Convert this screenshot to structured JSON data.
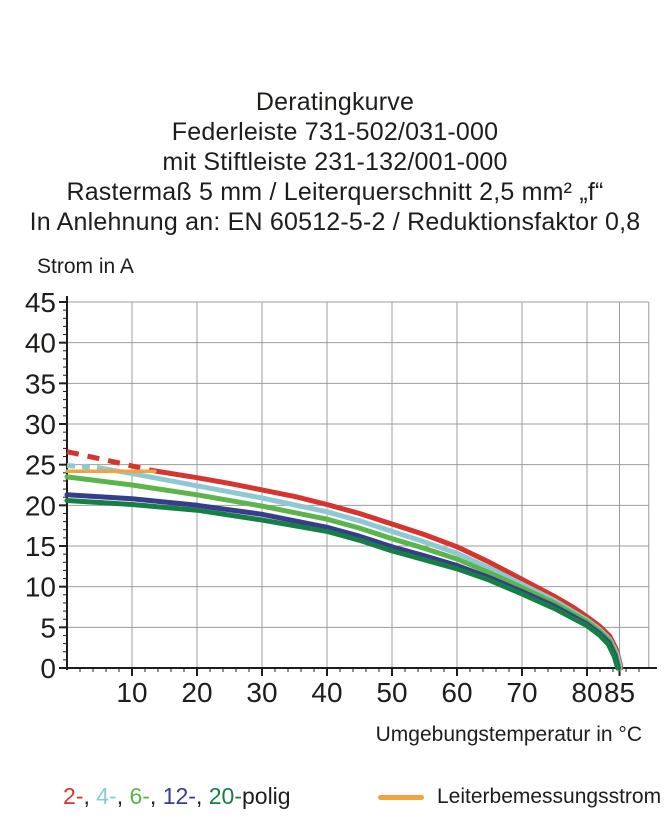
{
  "title_block": {
    "lines": [
      "Deratingkurve",
      "Federleiste 731-502/031-000",
      "mit Stiftleiste 231-132/001-000",
      "Rastermaß 5 mm / Leiterquerschnitt 2,5 mm² „f“",
      "In Anlehnung an: EN 60512-5-2 / Reduktionsfaktor 0,8"
    ]
  },
  "chart_data": {
    "type": "line",
    "title": "Deratingkurve",
    "ylabel": "Strom in A",
    "xlabel": "Umgebungstemperatur in °C",
    "xlim": [
      0,
      89.5
    ],
    "ylim": [
      0,
      45
    ],
    "x_ticks": [
      10,
      20,
      30,
      40,
      50,
      60,
      70,
      80,
      85
    ],
    "x_minor_step": 2,
    "x_minor_max": 88,
    "y_ticks": [
      0,
      5,
      10,
      15,
      20,
      25,
      30,
      35,
      40,
      45
    ],
    "y_minor_step": 1,
    "grid": true,
    "grid_color": "#9c9c9c",
    "axis_color": "#1d1d1b",
    "series": [
      {
        "name": "2-polig",
        "color": "#d6342c",
        "width": 5,
        "dash_pattern": "12 9",
        "dashed_points": [
          [
            0,
            26.6
          ],
          [
            4,
            25.9
          ],
          [
            8,
            25.2
          ],
          [
            13,
            24.3
          ]
        ],
        "points": [
          [
            13,
            24.3
          ],
          [
            20,
            23.4
          ],
          [
            25,
            22.7
          ],
          [
            30,
            21.9
          ],
          [
            35,
            21.1
          ],
          [
            40,
            20.1
          ],
          [
            45,
            19.0
          ],
          [
            50,
            17.7
          ],
          [
            55,
            16.4
          ],
          [
            60,
            14.9
          ],
          [
            65,
            13.0
          ],
          [
            70,
            10.9
          ],
          [
            75,
            8.8
          ],
          [
            78,
            7.4
          ],
          [
            80,
            6.3
          ],
          [
            82,
            5.1
          ],
          [
            83.5,
            3.9
          ],
          [
            84.5,
            2.3
          ],
          [
            85.1,
            0.5
          ],
          [
            85.2,
            0
          ]
        ]
      },
      {
        "name": "4-polig",
        "color": "#8ec9d3",
        "width": 5,
        "dash_pattern": "8 7",
        "dashed_points": [
          [
            0,
            24.9
          ],
          [
            5,
            24.6
          ]
        ],
        "points": [
          [
            5,
            24.6
          ],
          [
            10,
            23.9
          ],
          [
            20,
            22.4
          ],
          [
            30,
            20.9
          ],
          [
            40,
            19.2
          ],
          [
            45,
            18.1
          ],
          [
            50,
            16.8
          ],
          [
            55,
            15.5
          ],
          [
            60,
            14.1
          ],
          [
            65,
            12.3
          ],
          [
            70,
            10.3
          ],
          [
            75,
            8.3
          ],
          [
            80,
            5.9
          ],
          [
            82,
            4.7
          ],
          [
            83.5,
            3.5
          ],
          [
            84.5,
            1.9
          ],
          [
            85,
            0.4
          ],
          [
            85.05,
            0
          ]
        ]
      },
      {
        "name": "6-polig",
        "color": "#5cb54b",
        "width": 5,
        "points": [
          [
            0,
            23.5
          ],
          [
            10,
            22.5
          ],
          [
            20,
            21.3
          ],
          [
            30,
            19.9
          ],
          [
            40,
            18.3
          ],
          [
            45,
            17.2
          ],
          [
            50,
            15.9
          ],
          [
            55,
            14.7
          ],
          [
            60,
            13.4
          ],
          [
            65,
            11.7
          ],
          [
            70,
            9.9
          ],
          [
            75,
            8.0
          ],
          [
            80,
            5.7
          ],
          [
            82,
            4.5
          ],
          [
            83.5,
            3.3
          ],
          [
            84.4,
            1.7
          ],
          [
            84.9,
            0
          ]
        ]
      },
      {
        "name": "12-polig",
        "color": "#383c8c",
        "width": 5,
        "points": [
          [
            0,
            21.3
          ],
          [
            10,
            20.8
          ],
          [
            20,
            20.0
          ],
          [
            30,
            18.9
          ],
          [
            40,
            17.3
          ],
          [
            45,
            16.2
          ],
          [
            50,
            14.9
          ],
          [
            55,
            13.8
          ],
          [
            60,
            12.6
          ],
          [
            65,
            11.1
          ],
          [
            70,
            9.4
          ],
          [
            75,
            7.6
          ],
          [
            80,
            5.4
          ],
          [
            82,
            4.2
          ],
          [
            83.4,
            3.1
          ],
          [
            84.3,
            1.6
          ],
          [
            84.8,
            0
          ]
        ]
      },
      {
        "name": "20-polig",
        "color": "#167f45",
        "width": 5,
        "points": [
          [
            0,
            20.6
          ],
          [
            10,
            20.1
          ],
          [
            20,
            19.4
          ],
          [
            30,
            18.2
          ],
          [
            40,
            16.8
          ],
          [
            45,
            15.7
          ],
          [
            50,
            14.4
          ],
          [
            55,
            13.3
          ],
          [
            60,
            12.2
          ],
          [
            65,
            10.8
          ],
          [
            70,
            9.1
          ],
          [
            75,
            7.3
          ],
          [
            80,
            5.2
          ],
          [
            82,
            4.0
          ],
          [
            83.3,
            2.9
          ],
          [
            84.2,
            1.4
          ],
          [
            84.7,
            0
          ]
        ]
      },
      {
        "name": "Leiterbemessungsstrom",
        "color": "#f2a33c",
        "width": 3.5,
        "points": [
          [
            0,
            24.2
          ],
          [
            13.5,
            24.2
          ]
        ]
      }
    ]
  },
  "legend": {
    "pole_segments": [
      {
        "text": "2-",
        "color": "#d6342c"
      },
      {
        "text": ", ",
        "color": "#1d1d1b"
      },
      {
        "text": "4-",
        "color": "#8ec9d3"
      },
      {
        "text": ", ",
        "color": "#1d1d1b"
      },
      {
        "text": "6-",
        "color": "#5cb54b"
      },
      {
        "text": ", ",
        "color": "#1d1d1b"
      },
      {
        "text": "12-",
        "color": "#383c8c"
      },
      {
        "text": ", ",
        "color": "#1d1d1b"
      },
      {
        "text": "20-",
        "color": "#167f45"
      },
      {
        "text": "polig",
        "color": "#1d1d1b"
      }
    ],
    "rated_label": "Leiterbemessungsstrom",
    "rated_color": "#f2a33c"
  }
}
